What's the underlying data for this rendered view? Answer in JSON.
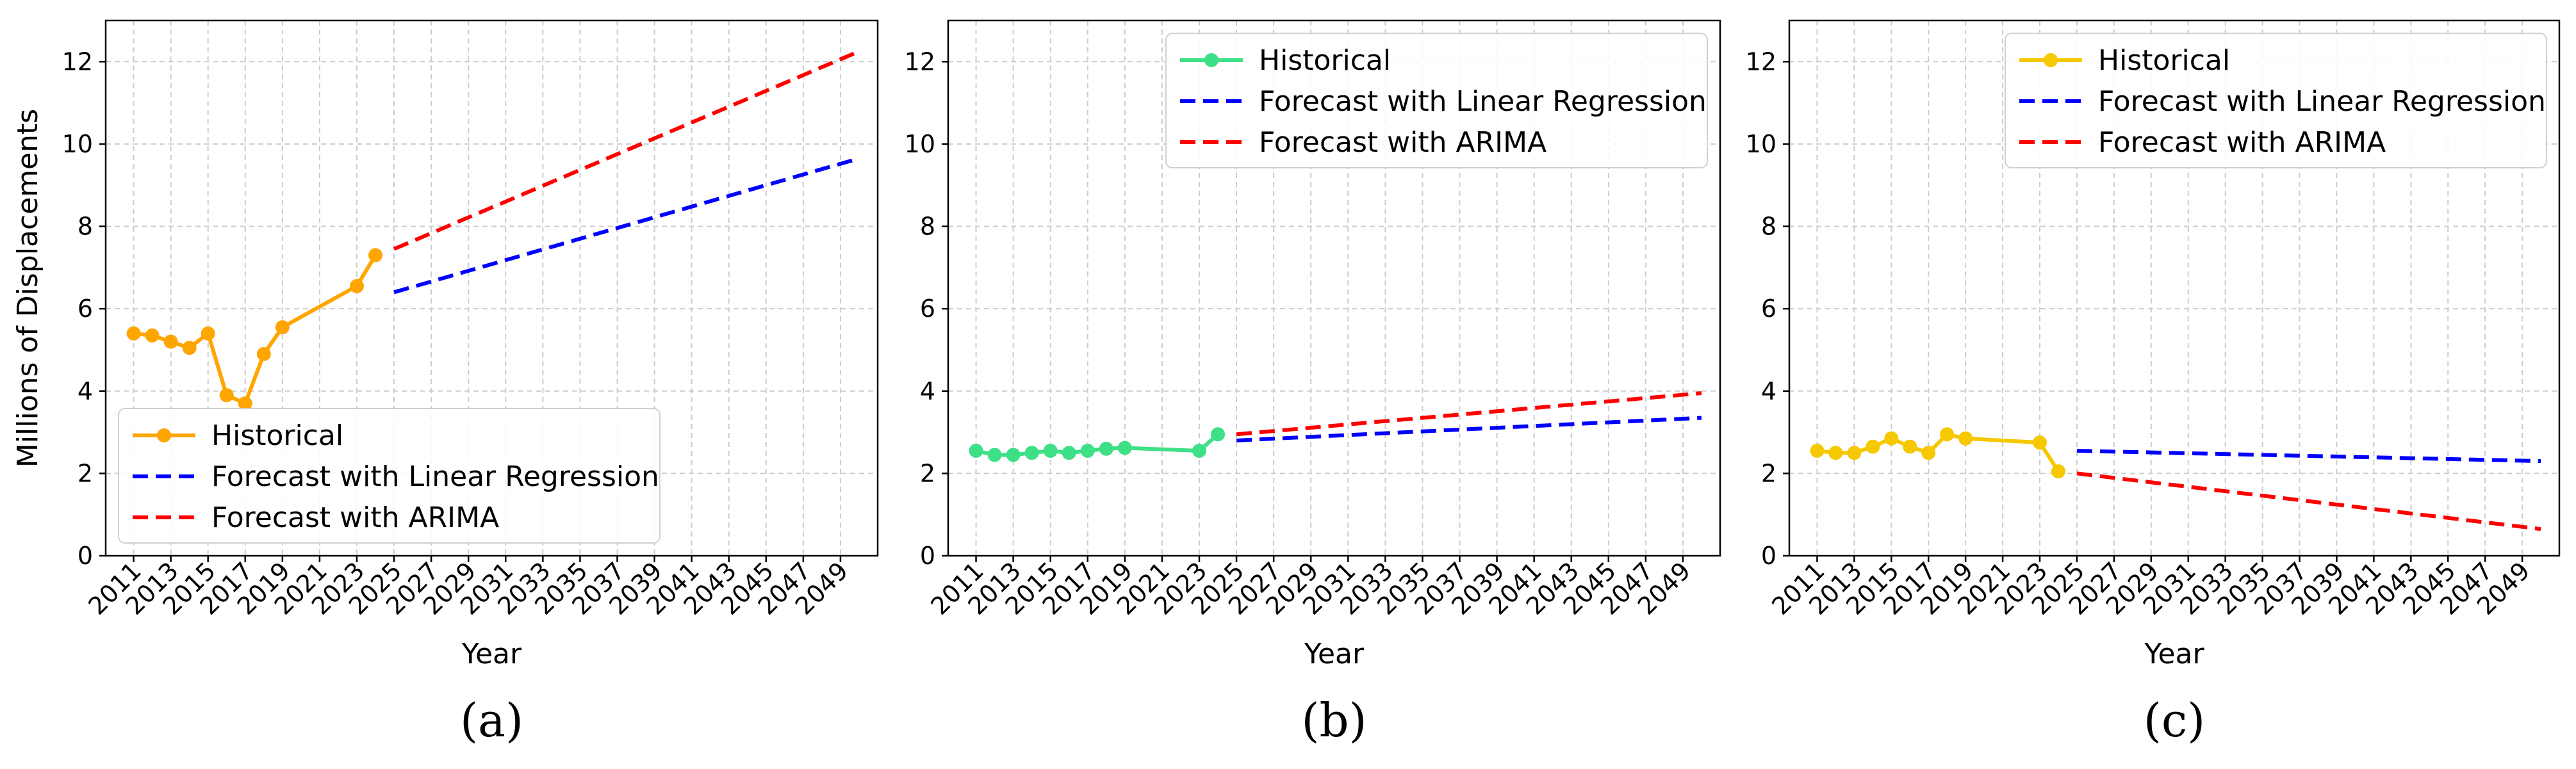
{
  "chart_data": [
    {
      "type": "line",
      "caption": "(a)",
      "xlabel": "Year",
      "ylabel": "Millions of Displacements",
      "xlim": [
        2009.5,
        2051
      ],
      "ylim": [
        0,
        13
      ],
      "yticks": [
        0,
        2,
        4,
        6,
        8,
        10,
        12
      ],
      "xticks": [
        2011,
        2013,
        2015,
        2017,
        2019,
        2021,
        2023,
        2025,
        2027,
        2029,
        2031,
        2033,
        2035,
        2037,
        2039,
        2041,
        2043,
        2045,
        2047,
        2049
      ],
      "grid": true,
      "legend_position": "lower-left",
      "series": [
        {
          "name": "Historical",
          "style": "solid-marker",
          "color": "#FFA500",
          "x": [
            2011,
            2012,
            2013,
            2014,
            2015,
            2016,
            2017,
            2018,
            2019,
            2023,
            2024
          ],
          "y": [
            5.4,
            5.35,
            5.2,
            5.05,
            5.4,
            3.9,
            3.7,
            4.9,
            5.55,
            6.55,
            7.3
          ]
        },
        {
          "name": "Forecast with Linear Regression",
          "style": "dashed",
          "color": "#0000FF",
          "x": [
            2025,
            2050
          ],
          "y": [
            6.4,
            9.65
          ]
        },
        {
          "name": "Forecast with ARIMA",
          "style": "dashed",
          "color": "#FF0000",
          "x": [
            2025,
            2050
          ],
          "y": [
            7.45,
            12.25
          ]
        }
      ]
    },
    {
      "type": "line",
      "caption": "(b)",
      "xlabel": "Year",
      "ylabel": "",
      "xlim": [
        2009.5,
        2051
      ],
      "ylim": [
        0,
        13
      ],
      "yticks": [
        0,
        2,
        4,
        6,
        8,
        10,
        12
      ],
      "xticks": [
        2011,
        2013,
        2015,
        2017,
        2019,
        2021,
        2023,
        2025,
        2027,
        2029,
        2031,
        2033,
        2035,
        2037,
        2039,
        2041,
        2043,
        2045,
        2047,
        2049
      ],
      "grid": true,
      "legend_position": "top-right",
      "series": [
        {
          "name": "Historical",
          "style": "solid-marker",
          "color": "#3DE086",
          "x": [
            2011,
            2012,
            2013,
            2014,
            2015,
            2016,
            2017,
            2018,
            2019,
            2023,
            2024
          ],
          "y": [
            2.55,
            2.45,
            2.45,
            2.5,
            2.55,
            2.5,
            2.55,
            2.6,
            2.62,
            2.55,
            2.95
          ]
        },
        {
          "name": "Forecast with Linear Regression",
          "style": "dashed",
          "color": "#0000FF",
          "x": [
            2025,
            2050
          ],
          "y": [
            2.8,
            3.35
          ]
        },
        {
          "name": "Forecast with ARIMA",
          "style": "dashed",
          "color": "#FF0000",
          "x": [
            2025,
            2050
          ],
          "y": [
            2.95,
            3.95
          ]
        }
      ]
    },
    {
      "type": "line",
      "caption": "(c)",
      "xlabel": "Year",
      "ylabel": "",
      "xlim": [
        2009.5,
        2051
      ],
      "ylim": [
        0,
        13
      ],
      "yticks": [
        0,
        2,
        4,
        6,
        8,
        10,
        12
      ],
      "xticks": [
        2011,
        2013,
        2015,
        2017,
        2019,
        2021,
        2023,
        2025,
        2027,
        2029,
        2031,
        2033,
        2035,
        2037,
        2039,
        2041,
        2043,
        2045,
        2047,
        2049
      ],
      "grid": true,
      "legend_position": "top-right",
      "series": [
        {
          "name": "Historical",
          "style": "solid-marker",
          "color": "#F5C800",
          "x": [
            2011,
            2012,
            2013,
            2014,
            2015,
            2016,
            2017,
            2018,
            2019,
            2023,
            2024
          ],
          "y": [
            2.55,
            2.5,
            2.5,
            2.65,
            2.85,
            2.65,
            2.5,
            2.95,
            2.85,
            2.75,
            2.05
          ]
        },
        {
          "name": "Forecast with Linear Regression",
          "style": "dashed",
          "color": "#0000FF",
          "x": [
            2025,
            2050
          ],
          "y": [
            2.55,
            2.3
          ]
        },
        {
          "name": "Forecast with ARIMA",
          "style": "dashed",
          "color": "#FF0000",
          "x": [
            2025,
            2050
          ],
          "y": [
            2.0,
            0.65
          ]
        }
      ]
    }
  ]
}
